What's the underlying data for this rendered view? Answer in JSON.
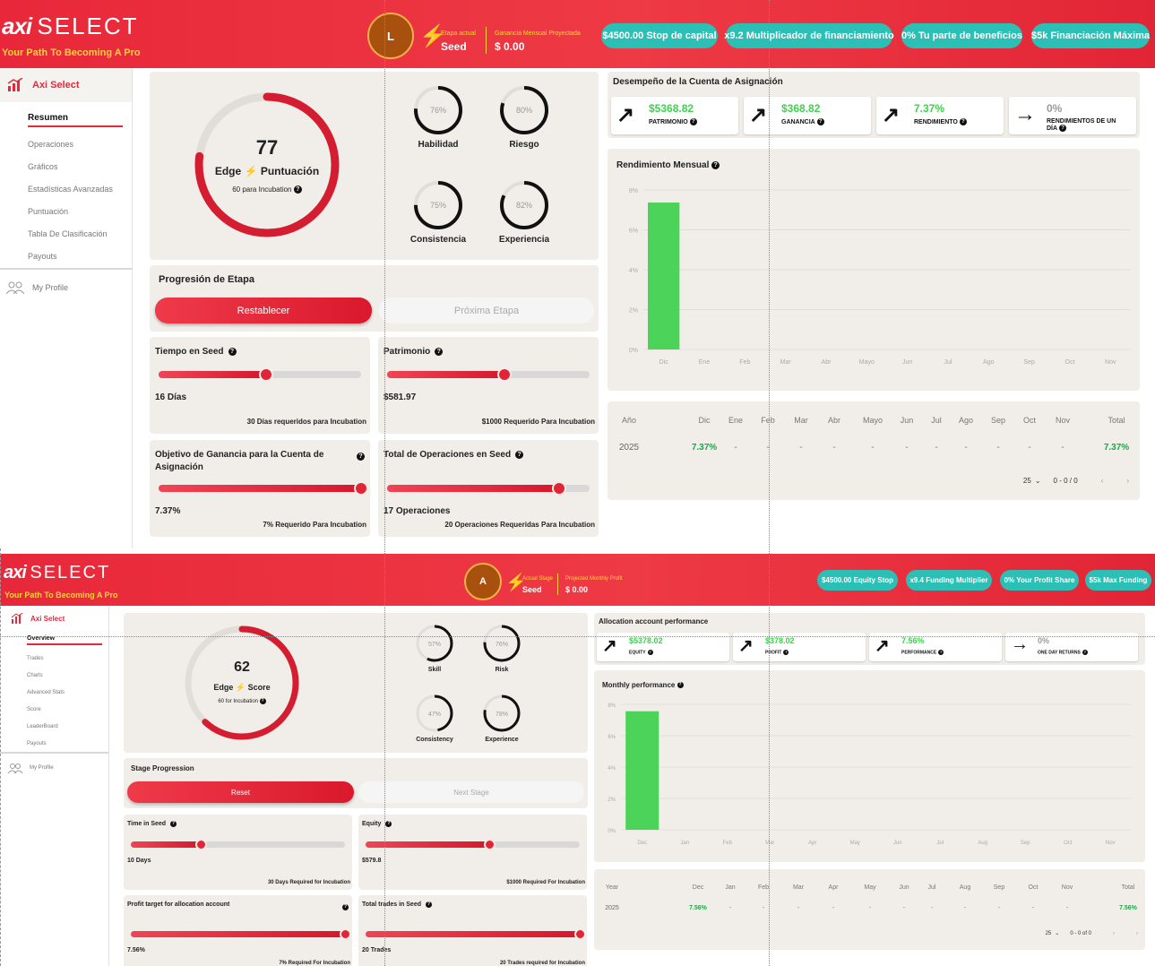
{
  "top": {
    "logo_main": "axi",
    "logo_select": "SELECT",
    "tagline": "Your Path To Becoming A Pro",
    "avatar_initial": "L",
    "stage_label": "Etapa actual",
    "stage_value": "Seed",
    "profit_label": "Ganancia Mensual Proyectada",
    "profit_value": "$ 0.00",
    "pills": [
      "$4500.00 Stop de capital",
      "x9.2 Multiplicador de financiamiento",
      "0% Tu parte de beneficios",
      "$5k Financiación Máxima"
    ],
    "brand": "Axi Select",
    "nav": [
      "Resumen",
      "Operaciones",
      "Gráficos",
      "Estadísticas Avanzadas",
      "Puntuación",
      "Tabla De Clasificación",
      "Payouts"
    ],
    "profile": "My Profile",
    "score": 77,
    "score_fraction": 0.77,
    "score_edge": "Edge",
    "score_word": "Puntuación",
    "score_sub": "60 para Incubation",
    "rings": [
      {
        "pct": "76%",
        "value": 0.76,
        "label": "Habilidad"
      },
      {
        "pct": "80%",
        "value": 0.8,
        "label": "Riesgo"
      },
      {
        "pct": "75%",
        "value": 0.75,
        "label": "Consistencia"
      },
      {
        "pct": "82%",
        "value": 0.82,
        "label": "Experiencia"
      }
    ],
    "progression_title": "Progresión de Etapa",
    "reset": "Restablecer",
    "next_stage": "Próxima Etapa",
    "metrics": [
      {
        "title": "Tiempo en Seed",
        "value": "16 Días",
        "req": "30 Días requeridos para Incubation",
        "progress": 0.53
      },
      {
        "title": "Patrimonio",
        "value": "$581.97",
        "req": "$1000 Requerido Para Incubation",
        "progress": 0.58
      },
      {
        "title": "Objetivo de Ganancia para la Cuenta de Asignación",
        "value": "7.37%",
        "req": "7% Requerido Para Incubation",
        "progress": 1.0
      },
      {
        "title": "Total de Operaciones en Seed",
        "value": "17 Operaciones",
        "req": "20 Operaciones Requeridas Para Incubation",
        "progress": 0.85
      }
    ],
    "perf_title": "Desempeño de la Cuenta de Asignación",
    "stats": [
      {
        "value": "$5368.82",
        "label": "Patrimonio",
        "arrow": "↗"
      },
      {
        "value": "$368.82",
        "label": "Ganancia",
        "arrow": "↗"
      },
      {
        "value": "7.37%",
        "label": "Rendimiento",
        "arrow": "↗"
      },
      {
        "value": "0%",
        "label": "Rendimientos de un día",
        "arrow": "→"
      }
    ],
    "monthly_title": "Rendimiento Mensual",
    "table": {
      "headers": [
        "Año",
        "Dic",
        "Ene",
        "Feb",
        "Mar",
        "Abr",
        "Mayo",
        "Jun",
        "Jul",
        "Ago",
        "Sep",
        "Oct",
        "Nov",
        "Total"
      ],
      "row": [
        "2025",
        "7.37%",
        "-",
        "-",
        "-",
        "-",
        "-",
        "-",
        "-",
        "-",
        "-",
        "-",
        "-",
        "7.37%"
      ],
      "page_size": "25",
      "pagination": "0 - 0 / 0"
    }
  },
  "bottom": {
    "logo_main": "axi",
    "logo_select": "SELECT",
    "tagline": "Your Path To Becoming A Pro",
    "avatar_initial": "A",
    "stage_label": "Actual Stage",
    "stage_value": "Seed",
    "profit_label": "Projected Monthly Profit",
    "profit_value": "$ 0.00",
    "pills": [
      "$4500.00 Equity Stop",
      "x9.4 Funding Multiplier",
      "0% Your Profit Share",
      "$5k Max Funding"
    ],
    "brand": "Axi Select",
    "nav": [
      "Overview",
      "Trades",
      "Charts",
      "Advanced Stats",
      "Score",
      "LeaderBoard",
      "Payouts"
    ],
    "profile": "My Profile",
    "score": 62,
    "score_fraction": 0.62,
    "score_edge": "Edge",
    "score_word": "Score",
    "score_sub": "60 for Incubation",
    "rings": [
      {
        "pct": "57%",
        "value": 0.57,
        "label": "Skill"
      },
      {
        "pct": "76%",
        "value": 0.76,
        "label": "Risk"
      },
      {
        "pct": "47%",
        "value": 0.47,
        "label": "Consistency"
      },
      {
        "pct": "78%",
        "value": 0.78,
        "label": "Experience"
      }
    ],
    "progression_title": "Stage Progression",
    "reset": "Reset",
    "next_stage": "Next Stage",
    "metrics": [
      {
        "title": "Time in Seed",
        "value": "10 Days",
        "req": "30 Days Required for Incubation",
        "progress": 0.33
      },
      {
        "title": "Equity",
        "value": "$579.8",
        "req": "$1000 Required For Incubation",
        "progress": 0.58
      },
      {
        "title": "Profit target for allocation account",
        "value": "7.56%",
        "req": "7% Required For Incubation",
        "progress": 1.0
      },
      {
        "title": "Total trades in Seed",
        "value": "20 Trades",
        "req": "20 Trades required for Incubation",
        "progress": 1.0
      }
    ],
    "perf_title": "Allocation account performance",
    "stats": [
      {
        "value": "$5378.02",
        "label": "Equity",
        "arrow": "↗"
      },
      {
        "value": "$378.02",
        "label": "Profit",
        "arrow": "↗"
      },
      {
        "value": "7.56%",
        "label": "Performance",
        "arrow": "↗"
      },
      {
        "value": "0%",
        "label": "One day returns",
        "arrow": "→"
      }
    ],
    "monthly_title": "Monthly performance",
    "table": {
      "headers": [
        "Year",
        "Dec",
        "Jan",
        "Feb",
        "Mar",
        "Apr",
        "May",
        "Jun",
        "Jul",
        "Aug",
        "Sep",
        "Oct",
        "Nov",
        "Total"
      ],
      "row": [
        "2025",
        "7.56%",
        "-",
        "-",
        "-",
        "-",
        "-",
        "-",
        "-",
        "-",
        "-",
        "-",
        "-",
        "7.56%"
      ],
      "page_size": "25",
      "pagination": "0 - 0 of 0"
    }
  },
  "chart_data": [
    {
      "type": "bar",
      "categories": [
        "Dic",
        "Ene",
        "Feb",
        "Mar",
        "Abr",
        "Mayo",
        "Jun",
        "Jul",
        "Ago",
        "Sep",
        "Oct",
        "Nov"
      ],
      "values": [
        7.37,
        0,
        0,
        0,
        0,
        0,
        0,
        0,
        0,
        0,
        0,
        0
      ],
      "yticks": [
        "0%",
        "2%",
        "4%",
        "6%",
        "8%"
      ],
      "ylim": [
        0,
        8
      ],
      "bar_color": "#4cd35a",
      "grid": true
    },
    {
      "type": "bar",
      "categories": [
        "Dec",
        "Jan",
        "Feb",
        "Mar",
        "Apr",
        "May",
        "Jun",
        "Jul",
        "Aug",
        "Sep",
        "Oct",
        "Nov"
      ],
      "values": [
        7.56,
        0,
        0,
        0,
        0,
        0,
        0,
        0,
        0,
        0,
        0,
        0
      ],
      "yticks": [
        "0%",
        "2%",
        "4%",
        "6%",
        "8%"
      ],
      "ylim": [
        0,
        8
      ],
      "bar_color": "#4cd35a",
      "grid": true
    }
  ]
}
